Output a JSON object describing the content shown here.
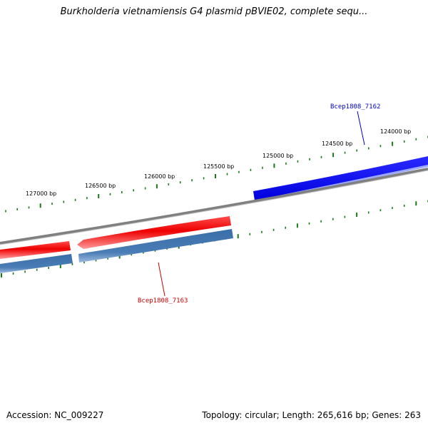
{
  "title": "Burkholderia vietnamiensis G4 plasmid pBVIE02, complete sequ...",
  "footer": {
    "accession": "Accession: NC_009227",
    "summary": "Topology: circular; Length: 265,616 bp; Genes: 263"
  },
  "ruler": {
    "unit": "bp",
    "labels": [
      "127000 bp",
      "126500 bp",
      "126000 bp",
      "125500 bp",
      "125000 bp",
      "124500 bp",
      "124000 bp"
    ]
  },
  "genes": [
    {
      "name": "Bcep1808_7162",
      "strand": "forward",
      "color": "#0000ee"
    },
    {
      "name": "Bcep1808_7163",
      "strand": "reverse",
      "color": "#cc0000"
    }
  ],
  "colors": {
    "backbone": "#808080",
    "forward_gene": "#0000ee",
    "reverse_gene": "#ee0000",
    "cds_track": "#4a7db5",
    "ticks": "#1a7a1a",
    "forward_label": "#0000cc",
    "reverse_label": "#cc0000"
  }
}
